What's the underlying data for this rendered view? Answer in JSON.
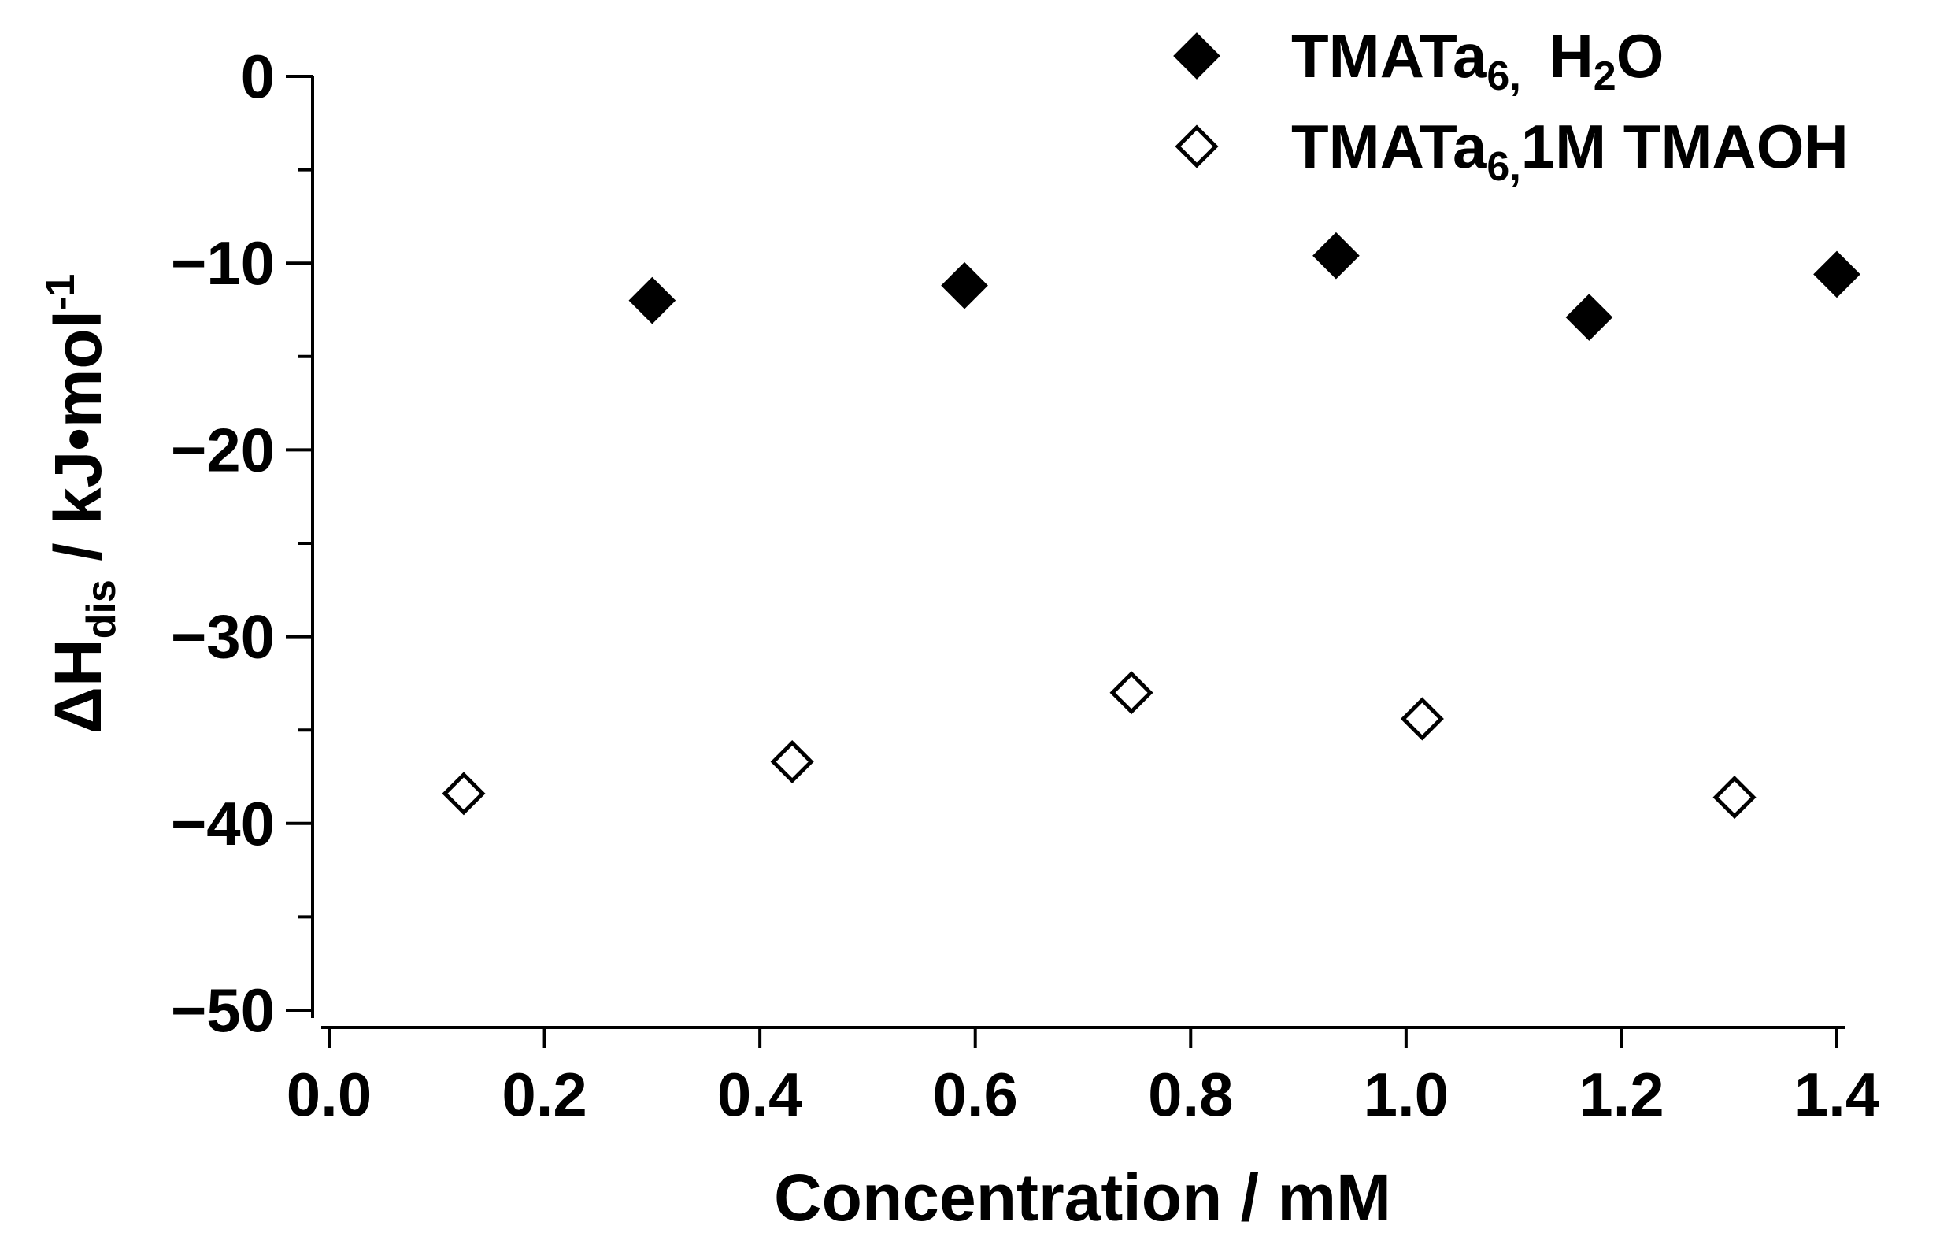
{
  "chart_data": {
    "type": "scatter",
    "title": "",
    "xlabel": "Concentration / mM",
    "ylabel": {
      "main": "ΔH",
      "sub": "dis",
      "rest": " / kJ•mol",
      "sup": "-1"
    },
    "xlim": [
      0.0,
      1.4
    ],
    "ylim": [
      -50,
      0
    ],
    "x_ticks": [
      "0.0",
      "0.2",
      "0.4",
      "0.6",
      "0.8",
      "1.0",
      "1.2",
      "1.4"
    ],
    "y_ticks": [
      "0",
      "-10",
      "-20",
      "-30",
      "-40",
      "-50"
    ],
    "grid": false,
    "legend_position": "top-right",
    "series": [
      {
        "name": "TMATa6, H2O",
        "legend": {
          "a": "TMATa",
          "sub1": "6,",
          "b": " H",
          "sub2": "2",
          "c": "O"
        },
        "marker": "filled-diamond",
        "color": "#000000",
        "points": [
          {
            "x": 0.3,
            "y": -12.0
          },
          {
            "x": 0.59,
            "y": -11.2
          },
          {
            "x": 0.935,
            "y": -9.6
          },
          {
            "x": 1.17,
            "y": -12.9
          },
          {
            "x": 1.4,
            "y": -10.6
          }
        ]
      },
      {
        "name": "TMATa6, 1M TMAOH",
        "legend": {
          "a": "TMATa",
          "sub1": "6,",
          "b": "1M TMAOH"
        },
        "marker": "open-diamond",
        "color": "#000000",
        "points": [
          {
            "x": 0.125,
            "y": -38.4
          },
          {
            "x": 0.43,
            "y": -36.7
          },
          {
            "x": 0.745,
            "y": -33.0
          },
          {
            "x": 1.015,
            "y": -34.4
          },
          {
            "x": 1.305,
            "y": -38.6
          }
        ]
      }
    ]
  }
}
